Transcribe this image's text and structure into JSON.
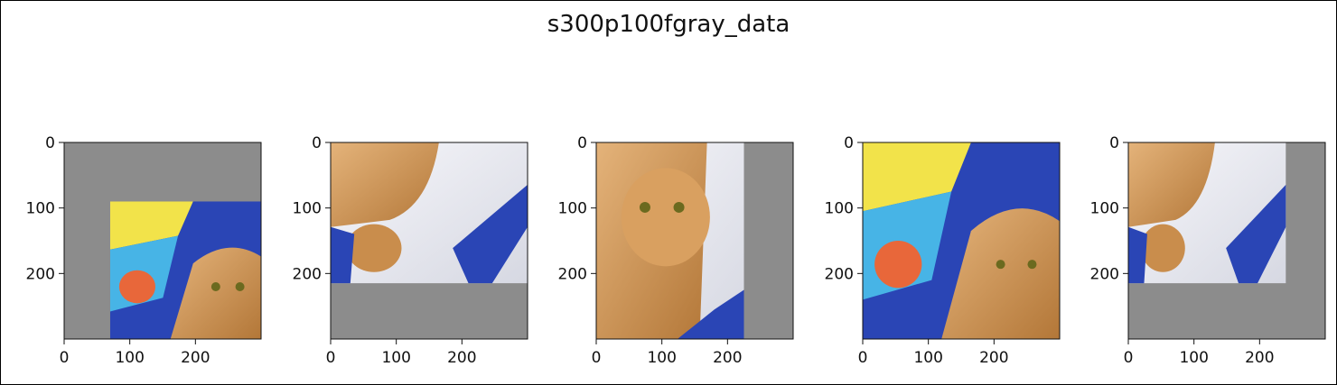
{
  "title": "s300p100fgray_data",
  "chart_data": {
    "type": "image-grid",
    "title": "s300p100fgray_data",
    "xlim": [
      0,
      300
    ],
    "ylim": [
      300,
      0
    ],
    "xticks": [
      0,
      100,
      200
    ],
    "yticks": [
      0,
      100,
      200
    ],
    "fill_color": "#8c8c8c",
    "panels": [
      {
        "name": "panel-1",
        "content": "cat-and-blue-bag",
        "image_extent": {
          "x": [
            70,
            300
          ],
          "y": [
            90,
            300
          ]
        }
      },
      {
        "name": "panel-2",
        "content": "cat-paw-on-sheet",
        "image_extent": {
          "x": [
            0,
            300
          ],
          "y": [
            0,
            215
          ]
        }
      },
      {
        "name": "panel-3",
        "content": "cat-face",
        "image_extent": {
          "x": [
            0,
            225
          ],
          "y": [
            0,
            300
          ]
        }
      },
      {
        "name": "panel-4",
        "content": "cat-and-blue-bag",
        "image_extent": {
          "x": [
            0,
            300
          ],
          "y": [
            0,
            300
          ]
        }
      },
      {
        "name": "panel-5",
        "content": "cat-paw-on-sheet",
        "image_extent": {
          "x": [
            0,
            240
          ],
          "y": [
            0,
            215
          ]
        }
      }
    ]
  },
  "colors": {
    "axis": "#111111",
    "gray_fill": "#8c8c8c",
    "fur": "#d09a5c",
    "sheet": "#ececf2",
    "bag_blue": "#2a45b5",
    "bag_yellow": "#f2e34a"
  }
}
